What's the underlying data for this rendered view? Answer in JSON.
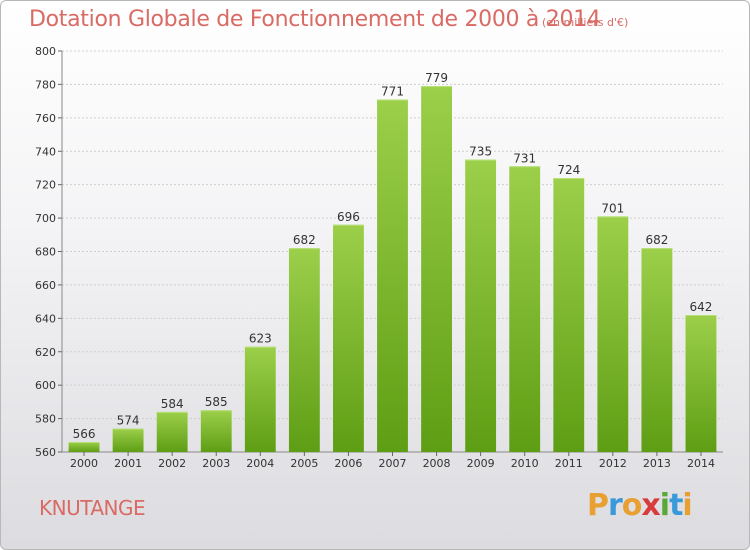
{
  "chart_data": {
    "type": "bar",
    "title": "Dotation Globale de Fonctionnement de 2000 à 2014",
    "subtitle": "(en milliers d'€)",
    "categories": [
      "2000",
      "2001",
      "2002",
      "2003",
      "2004",
      "2005",
      "2006",
      "2007",
      "2008",
      "2009",
      "2010",
      "2011",
      "2012",
      "2013",
      "2014"
    ],
    "values": [
      566,
      574,
      584,
      585,
      623,
      682,
      696,
      771,
      779,
      735,
      731,
      724,
      701,
      682,
      642
    ],
    "ylim": [
      560,
      800
    ],
    "yticks": [
      560,
      580,
      600,
      620,
      640,
      660,
      680,
      700,
      720,
      740,
      760,
      780,
      800
    ],
    "grid": true,
    "bar_color_top": "#9ccf4a",
    "bar_color_bottom": "#5e9e14"
  },
  "footer": {
    "commune": "KNUTANGE",
    "logo_letters": [
      "P",
      "r",
      "o",
      "x",
      "i",
      "t",
      "i"
    ],
    "logo_colors": [
      "#e8a033",
      "#3a9ad9",
      "#e8a033",
      "#d93a3a",
      "#5aa83a",
      "#3a9ad9",
      "#e8a033"
    ]
  }
}
